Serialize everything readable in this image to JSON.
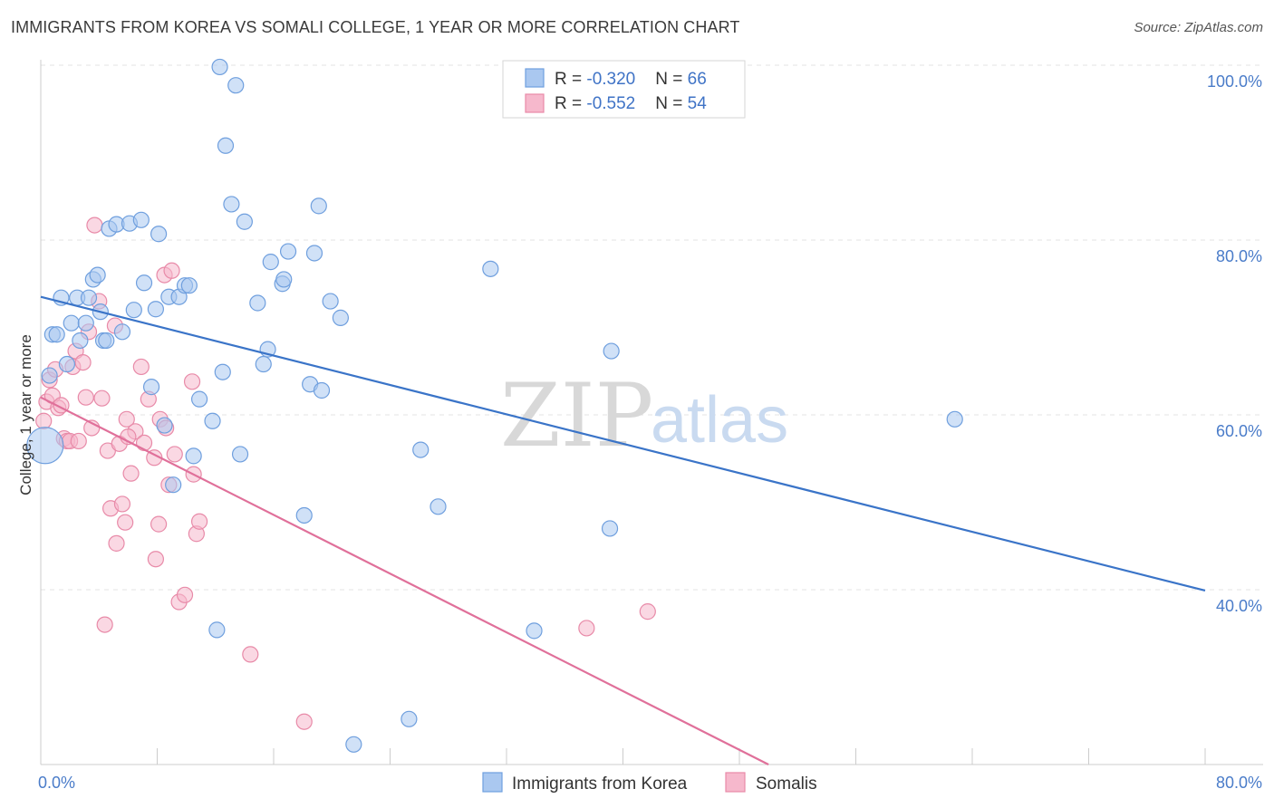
{
  "title": "IMMIGRANTS FROM KOREA VS SOMALI COLLEGE, 1 YEAR OR MORE CORRELATION CHART",
  "source": "Source: ZipAtlas.com",
  "watermark": {
    "zip": "ZIP",
    "atlas": "atlas"
  },
  "colors": {
    "korea_fill": "#aac8f0",
    "korea_stroke": "#6f9fde",
    "korea_line": "#3a74c8",
    "somali_fill": "#f6b8cc",
    "somali_stroke": "#e88aa8",
    "somali_line": "#e0709a",
    "grid": "#e3e3e3",
    "axis": "#cccccc",
    "tick_text": "#4a7cc9"
  },
  "legend": {
    "rows": [
      {
        "r_label": "R = ",
        "r_value": "-0.320",
        "n_label": "N = ",
        "n_value": "66"
      },
      {
        "r_label": "R = ",
        "r_value": "-0.552",
        "n_label": "N = ",
        "n_value": "54"
      }
    ]
  },
  "chart_data": {
    "type": "scatter",
    "title": "IMMIGRANTS FROM KOREA VS SOMALI COLLEGE, 1 YEAR OR MORE CORRELATION CHART",
    "xlabel": "",
    "ylabel": "College, 1 year or more",
    "xlim": [
      0,
      80
    ],
    "ylim": [
      20,
      100
    ],
    "x_tick_labels": [
      "0.0%",
      "80.0%"
    ],
    "y_ticks": [
      40,
      60,
      80,
      100
    ],
    "y_tick_labels": [
      "40.0%",
      "60.0%",
      "80.0%",
      "100.0%"
    ],
    "grid": true,
    "legend_position": "top-center",
    "series": [
      {
        "name": "Immigrants from Korea",
        "trend": {
          "x": [
            0,
            80
          ],
          "y": [
            73.5,
            39.9
          ]
        },
        "points": [
          [
            0.3,
            56.5,
            "large"
          ],
          [
            0.6,
            64.5
          ],
          [
            0.8,
            69.2
          ],
          [
            1.1,
            69.2
          ],
          [
            1.4,
            73.4
          ],
          [
            1.8,
            65.8
          ],
          [
            2.1,
            70.5
          ],
          [
            2.5,
            73.4
          ],
          [
            2.7,
            68.5
          ],
          [
            3.1,
            70.5
          ],
          [
            3.3,
            73.4
          ],
          [
            3.6,
            75.5
          ],
          [
            3.9,
            76.0
          ],
          [
            4.1,
            71.8
          ],
          [
            4.3,
            68.5
          ],
          [
            4.5,
            68.5
          ],
          [
            4.7,
            81.3
          ],
          [
            5.2,
            81.8
          ],
          [
            5.6,
            69.5
          ],
          [
            6.1,
            81.9
          ],
          [
            6.4,
            72.0
          ],
          [
            6.9,
            82.3
          ],
          [
            7.1,
            75.1
          ],
          [
            7.6,
            63.2
          ],
          [
            7.9,
            72.1
          ],
          [
            8.1,
            80.7
          ],
          [
            8.5,
            58.8
          ],
          [
            8.8,
            73.5
          ],
          [
            9.1,
            52.0
          ],
          [
            9.5,
            73.5
          ],
          [
            9.9,
            74.8
          ],
          [
            10.2,
            74.8
          ],
          [
            10.5,
            55.3
          ],
          [
            10.9,
            61.8
          ],
          [
            11.8,
            59.3
          ],
          [
            12.1,
            35.4
          ],
          [
            12.3,
            99.8
          ],
          [
            12.5,
            64.9
          ],
          [
            12.7,
            90.8
          ],
          [
            13.1,
            84.1
          ],
          [
            13.4,
            97.7
          ],
          [
            13.7,
            55.5
          ],
          [
            14.0,
            82.1
          ],
          [
            14.9,
            72.8
          ],
          [
            15.3,
            65.8
          ],
          [
            15.6,
            67.5
          ],
          [
            15.8,
            77.5
          ],
          [
            16.6,
            75.0
          ],
          [
            16.7,
            75.5
          ],
          [
            17.0,
            78.7
          ],
          [
            18.1,
            48.5
          ],
          [
            18.5,
            63.5
          ],
          [
            18.8,
            78.5
          ],
          [
            19.1,
            83.9
          ],
          [
            19.3,
            62.8
          ],
          [
            19.9,
            73.0
          ],
          [
            20.6,
            71.1
          ],
          [
            21.5,
            22.3
          ],
          [
            25.3,
            25.2
          ],
          [
            26.1,
            56.0
          ],
          [
            27.3,
            49.5
          ],
          [
            30.9,
            76.7
          ],
          [
            33.9,
            35.3
          ],
          [
            39.1,
            47.0
          ],
          [
            39.2,
            67.3
          ],
          [
            62.8,
            59.5
          ]
        ]
      },
      {
        "name": "Somalis",
        "trend": {
          "x": [
            0,
            50
          ],
          "y": [
            62.0,
            20.0
          ]
        },
        "points": [
          [
            0.2,
            59.3
          ],
          [
            0.4,
            61.5
          ],
          [
            0.6,
            64.0
          ],
          [
            0.8,
            62.2
          ],
          [
            1.0,
            65.2
          ],
          [
            1.2,
            60.8
          ],
          [
            1.4,
            61.1
          ],
          [
            1.6,
            57.3
          ],
          [
            1.8,
            57.0
          ],
          [
            2.0,
            57.0
          ],
          [
            2.2,
            65.5
          ],
          [
            2.4,
            67.3
          ],
          [
            2.6,
            57.0
          ],
          [
            2.9,
            66.0
          ],
          [
            3.1,
            62.0
          ],
          [
            3.3,
            69.5
          ],
          [
            3.5,
            58.5
          ],
          [
            3.7,
            81.7
          ],
          [
            4.0,
            73.0
          ],
          [
            4.2,
            61.9
          ],
          [
            4.4,
            36.0
          ],
          [
            4.6,
            55.9
          ],
          [
            4.8,
            49.3
          ],
          [
            5.1,
            70.2
          ],
          [
            5.2,
            45.3
          ],
          [
            5.4,
            56.7
          ],
          [
            5.6,
            49.8
          ],
          [
            5.8,
            47.7
          ],
          [
            5.9,
            59.5
          ],
          [
            6.2,
            53.3
          ],
          [
            6.5,
            58.1
          ],
          [
            6.9,
            65.5
          ],
          [
            7.1,
            56.8
          ],
          [
            7.4,
            61.8
          ],
          [
            7.8,
            55.1
          ],
          [
            7.9,
            43.5
          ],
          [
            8.1,
            47.5
          ],
          [
            8.2,
            59.5
          ],
          [
            8.5,
            76.0
          ],
          [
            8.8,
            52.0
          ],
          [
            9.0,
            76.5
          ],
          [
            9.2,
            55.5
          ],
          [
            9.5,
            38.6
          ],
          [
            9.9,
            39.4
          ],
          [
            10.4,
            63.8
          ],
          [
            10.5,
            53.2
          ],
          [
            10.7,
            46.4
          ],
          [
            10.9,
            47.8
          ],
          [
            14.4,
            32.6
          ],
          [
            18.1,
            24.9
          ],
          [
            37.5,
            35.6
          ],
          [
            41.7,
            37.5
          ],
          [
            6.0,
            57.5
          ],
          [
            8.6,
            58.5
          ]
        ]
      }
    ]
  },
  "bottom_legend": [
    {
      "label": "Immigrants from Korea"
    },
    {
      "label": "Somalis"
    }
  ]
}
